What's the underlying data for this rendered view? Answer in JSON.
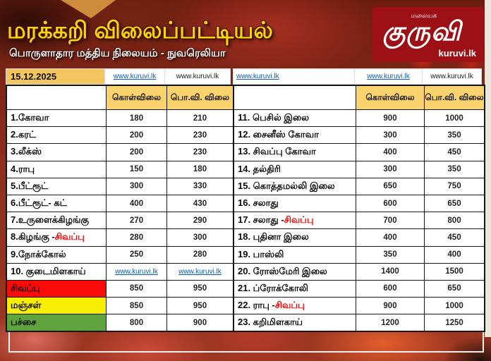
{
  "header": {
    "title": "மரக்கறி விலைப்பட்டியல்",
    "subtitle": "பொருளாதார மத்திய நிலையம் - நுவரெலியா",
    "logo": {
      "tagline": "மலையக",
      "name": "குருவி",
      "site": "kuruvi.lk"
    }
  },
  "table": {
    "date": "15.12.2025",
    "website": "www.kuruvi.lk",
    "col_buy": "கொள்விலை",
    "col_retail": "பொ.வி. விலை",
    "top_left": [
      {
        "text": "15.12.2025",
        "kind": "date"
      },
      {
        "text": "www.kuruvi.lk",
        "kind": "link"
      },
      {
        "text": "www.kuruvi.lk",
        "kind": "plain"
      }
    ],
    "top_right": [
      {
        "text": "www.kuruvi.lk",
        "kind": "link",
        "align": "left"
      },
      {
        "text": "www.kuruvi.lk",
        "kind": "link"
      },
      {
        "text": "www.kuruvi.lk",
        "kind": "plain"
      }
    ],
    "left_rows": [
      {
        "label": "1.கோவா",
        "buy": "180",
        "retail": "210"
      },
      {
        "label": "2.கரட்",
        "buy": "200",
        "retail": "230"
      },
      {
        "label": "3.லீக்ஸ்",
        "buy": "200",
        "retail": "230"
      },
      {
        "label": "4.ராபு",
        "buy": "150",
        "retail": "180"
      },
      {
        "label": "5.பீட்ரூட்",
        "buy": "300",
        "retail": "330"
      },
      {
        "label": "6.பீட்ரூட்- கட்",
        "buy": "400",
        "retail": "430"
      },
      {
        "label": "7.உருளைக்கிழங்கு",
        "buy": "270",
        "retail": "290"
      },
      {
        "label": "8.கிழங்கு - ",
        "label_red": "சிவப்பு",
        "buy": "280",
        "retail": "300"
      },
      {
        "label": "9.நோக்கோல்",
        "buy": "250",
        "retail": "280"
      },
      {
        "label": "10. குடைமிளகாய்",
        "links": true,
        "buy": "www.kuruvi.lk",
        "retail": "www.kuruvi.lk"
      },
      {
        "label": "சிவப்பு",
        "bg": "red_row",
        "buy": "850",
        "retail": "950"
      },
      {
        "label": "மஞ்சள்",
        "bg": "yellow_row",
        "buy": "850",
        "retail": "950"
      },
      {
        "label": "பச்சை",
        "bg": "green_row",
        "buy": "800",
        "retail": "900"
      }
    ],
    "right_rows": [
      {
        "label": "11. பெசில் இலை",
        "buy": "900",
        "retail": "1000"
      },
      {
        "label": "12. சைனீஸ் கோவா",
        "buy": "300",
        "retail": "350"
      },
      {
        "label": "13. சிவப்பு கோவா",
        "buy": "400",
        "retail": "450"
      },
      {
        "label": "14. தல்திரி",
        "buy": "300",
        "retail": "350"
      },
      {
        "label": "15. கொத்தமல்லி இலை",
        "buy": "650",
        "retail": "750"
      },
      {
        "label": "16. சலாது",
        "buy": "600",
        "retail": "650"
      },
      {
        "label": "17. சலாது - ",
        "label_red": "சிவப்பு",
        "buy": "700",
        "retail": "800"
      },
      {
        "label": "18. புதினா இலை",
        "buy": "400",
        "retail": "450"
      },
      {
        "label": "19. பாஸ்லி",
        "buy": "350",
        "retail": "400"
      },
      {
        "label": "20. ரோஸ்மேரி இலை",
        "buy": "1400",
        "retail": "1500"
      },
      {
        "label": "21. ப்ரோக்கோலி",
        "buy": "600",
        "retail": "650"
      },
      {
        "label": "22. ராபு - ",
        "label_red": "சிவப்பு",
        "buy": "900",
        "retail": "1000"
      },
      {
        "label": "23. கறிமிளகாய்",
        "buy": "1200",
        "retail": "1250"
      }
    ]
  },
  "colors": {
    "red_row": "#fb0b07",
    "yellow_row": "#f8ee00",
    "green_row": "#5fa33e",
    "link_blue": "#0a5bc4",
    "red_text": "#fe0000",
    "date_bg": "#f2c55e",
    "header_bg": "#fbd36e",
    "buy_col_bg": "#fdf3d6",
    "retail_col_bg": "#fce092"
  }
}
